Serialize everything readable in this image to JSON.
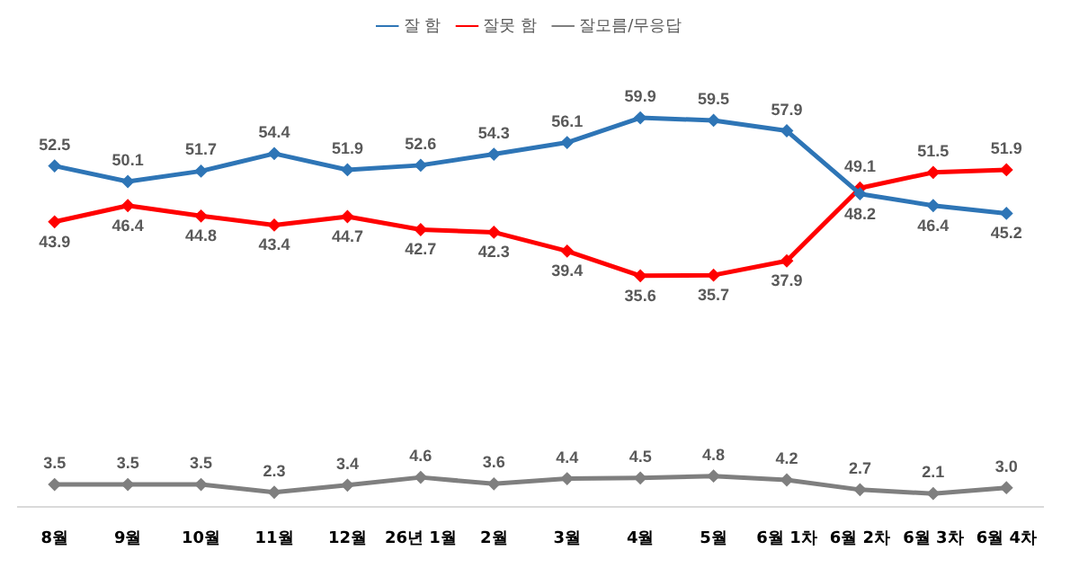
{
  "chart_data": {
    "type": "line",
    "categories": [
      "8월",
      "9월",
      "10월",
      "11월",
      "12월",
      "26년 1월",
      "2월",
      "3월",
      "4월",
      "5월",
      "6월 1차",
      "6월 2차",
      "6월 3차",
      "6월 4차"
    ],
    "series": [
      {
        "name": "잘 함",
        "color": "#2e75b6",
        "values": [
          52.5,
          50.1,
          51.7,
          54.4,
          51.9,
          52.6,
          54.3,
          56.1,
          59.9,
          59.5,
          57.9,
          48.2,
          46.4,
          45.2
        ],
        "value_labels": [
          "52.5",
          "50.1",
          "51.7",
          "54.4",
          "51.9",
          "52.6",
          "54.3",
          "56.1",
          "59.9",
          "59.5",
          "57.9",
          "48.2",
          "46.4",
          "45.2"
        ]
      },
      {
        "name": "잘못 함",
        "color": "#ff0000",
        "values": [
          43.9,
          46.4,
          44.8,
          43.4,
          44.7,
          42.7,
          42.3,
          39.4,
          35.6,
          35.7,
          37.9,
          49.1,
          51.5,
          51.9
        ],
        "value_labels": [
          "43.9",
          "46.4",
          "44.8",
          "43.4",
          "44.7",
          "42.7",
          "42.3",
          "39.4",
          "35.6",
          "35.7",
          "37.9",
          "49.1",
          "51.5",
          "51.9"
        ]
      },
      {
        "name": "잘모름/무응답",
        "color": "#7f7f7f",
        "values": [
          3.5,
          3.5,
          3.5,
          2.3,
          3.4,
          4.6,
          3.6,
          4.4,
          4.5,
          4.8,
          4.2,
          2.7,
          2.1,
          3.0
        ],
        "value_labels": [
          "3.5",
          "3.5",
          "3.5",
          "2.3",
          "3.4",
          "4.6",
          "3.6",
          "4.4",
          "4.5",
          "4.8",
          "4.2",
          "2.7",
          "2.1",
          "3.0"
        ]
      }
    ],
    "legend": "top",
    "marker": "diamond",
    "line_style": "solid"
  }
}
